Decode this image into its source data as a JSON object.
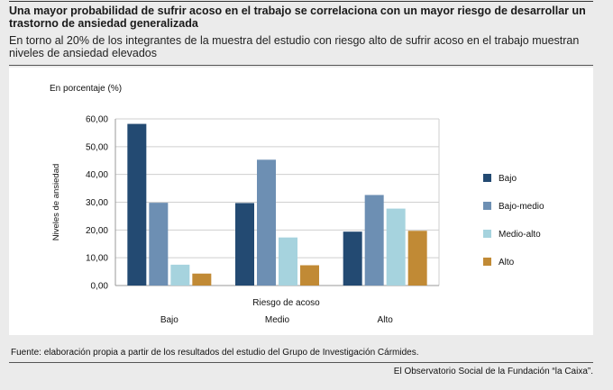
{
  "header": {
    "title": "Una mayor probabilidad de sufrir acoso en el trabajo se correlaciona con un mayor riesgo de desarrollar un trastorno de ansiedad generalizada",
    "subtitle": "En torno al 20% de los integrantes de la muestra del estudio con riesgo alto de sufrir acoso en el trabajo muestran niveles de ansiedad elevados"
  },
  "footer": {
    "source": "Fuente: elaboración propia a partir de los resultados del estudio del Grupo de Investigación Cármides.",
    "credit": "El Observatorio Social de la Fundación “la Caixa”."
  },
  "chart_data": {
    "type": "bar",
    "unit_label": "En porcentaje (%)",
    "ylabel": "Niveles de ansiedad",
    "xlabel": "Riesgo de acoso",
    "categories": [
      "Bajo",
      "Medio",
      "Alto"
    ],
    "ylim": [
      0,
      60
    ],
    "yticks": [
      "0,00",
      "10,00",
      "20,00",
      "30,00",
      "40,00",
      "50,00",
      "60,00"
    ],
    "grid": true,
    "legend_position": "right",
    "series": [
      {
        "name": "Bajo",
        "color": "#234a72",
        "values": [
          58.2,
          29.7,
          19.4
        ]
      },
      {
        "name": "Bajo-medio",
        "color": "#6d8fb3",
        "values": [
          29.8,
          45.3,
          32.6
        ]
      },
      {
        "name": "Medio-alto",
        "color": "#a6d3de",
        "values": [
          7.5,
          17.3,
          27.7
        ]
      },
      {
        "name": "Alto",
        "color": "#c18a35",
        "values": [
          4.3,
          7.3,
          19.7
        ]
      }
    ]
  }
}
